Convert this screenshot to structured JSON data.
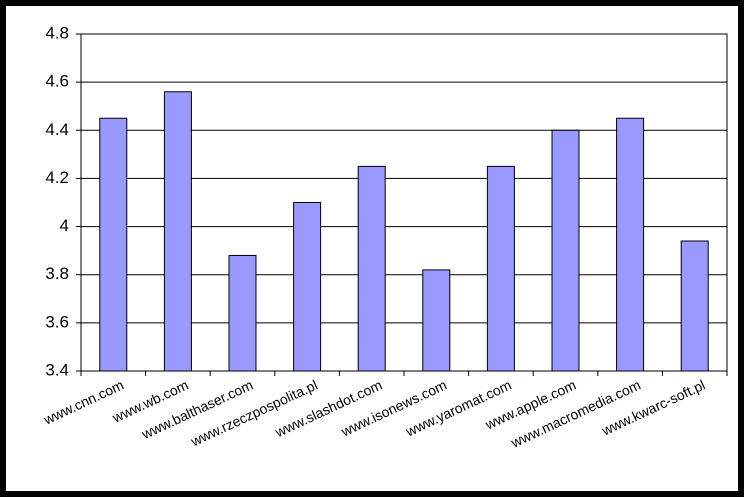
{
  "chart_data": {
    "type": "bar",
    "categories": [
      "www.cnn.com",
      "www.wb.com",
      "www.balthaser.com",
      "www.rzeczpospolita.pl",
      "www.slashdot.com",
      "www.isonews.com",
      "www.yaromat.com",
      "www.apple.com",
      "www.macromedia.com",
      "www.kwarc-soft.pl"
    ],
    "values": [
      4.45,
      4.56,
      3.88,
      4.1,
      4.25,
      3.82,
      4.25,
      4.4,
      4.45,
      3.94
    ],
    "color": "#9999ff",
    "ylim": [
      3.4,
      4.8
    ],
    "yticks": [
      3.4,
      3.6,
      3.8,
      4,
      4.2,
      4.4,
      4.6,
      4.8
    ],
    "grid": true
  }
}
